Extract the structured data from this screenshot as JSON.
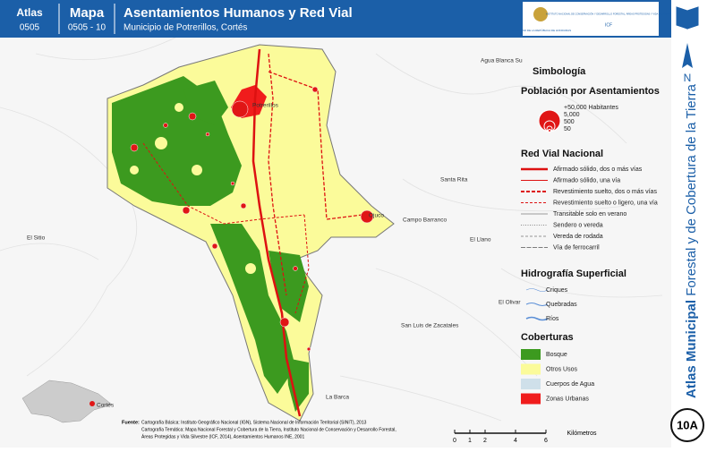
{
  "header": {
    "atlas_label": "Atlas",
    "atlas_code": "0505",
    "map_label": "Mapa",
    "map_code": "0505 - 10",
    "title": "Asentamientos Humanos y Red Vial",
    "subtitle": "Municipio de Potrerillos, Cortés",
    "logo_left": "GOBIERNO DE LA REPÚBLICA DE HONDURAS",
    "logo_right": "INSTITUTO NACIONAL DE CONSERVACIÓN Y DESARROLLO FORESTAL, ÁREAS PROTEGIDAS Y VIDA SILVESTRE",
    "logo_right_code": "ICF"
  },
  "sidebar": {
    "north": "N",
    "vertical_bold": "Atlas Municipal",
    "vertical_rest": "Forestal y de Cobertura de la Tierra",
    "sheet": "10A"
  },
  "map": {
    "places": [
      "Agua Blanca Su",
      "Potrerillos",
      "Santa Rita",
      "Ojuco",
      "Campo Barranco",
      "El Llano",
      "El Sitio",
      "El Olivar",
      "San Luis de Zacatales",
      "La Barca"
    ],
    "inset_label": "Cortés"
  },
  "legend": {
    "title": "Simbología",
    "population": {
      "title": "Población por Asentamientos",
      "items": [
        "+50,000 Habitantes",
        "5,000",
        "500",
        "50"
      ]
    },
    "roads": {
      "title": "Red Vial Nacional",
      "items": [
        "Afirmado sólido, dos o más vías",
        "Afirmado sólido, una vía",
        "Revestimiento suelto, dos o más vías",
        "Revestimiento suelto o ligero, una vía",
        "Transitable solo en verano",
        "Sendero o vereda",
        "Vereda de rodada",
        "Vía de ferrocarril"
      ]
    },
    "hydro": {
      "title": "Hidrografía Superficial",
      "items": [
        "Criques",
        "Quebradas",
        "Ríos"
      ]
    },
    "cover": {
      "title": "Coberturas",
      "items": [
        "Bosque",
        "Otros Usos",
        "Cuerpos de Agua",
        "Zonas Urbanas"
      ]
    }
  },
  "scale": {
    "ticks": [
      0,
      1,
      2,
      4,
      6
    ],
    "unit": "Kilómetros"
  },
  "source": {
    "label": "Fuente:",
    "lines": [
      "Cartografía Básica: Instituto Geográfico Nacional (IGN), Sistema Nacional de Información Territorial (SINIT), 2013",
      "Cartografía Temática: Mapa Nacional Forestal y Cobertura de la Tierra, Instituto Nacional de Conservación y Desarrollo Forestal,",
      "Áreas Protegidas y Vida Silvestre (ICF, 2014), Asentamientos Humanos INE, 2001"
    ]
  }
}
